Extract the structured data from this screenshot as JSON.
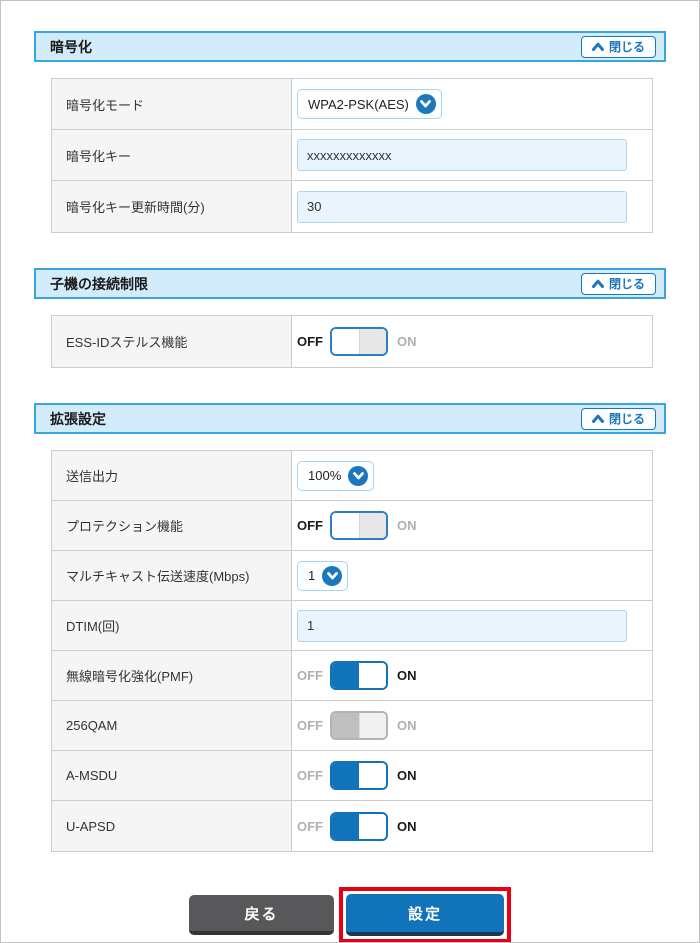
{
  "ui": {
    "close_label": "閉じる",
    "toggle_off": "OFF",
    "toggle_on": "ON"
  },
  "sections": [
    {
      "title": "暗号化",
      "rows": [
        {
          "label": "暗号化モード",
          "type": "select",
          "value": "WPA2-PSK(AES)"
        },
        {
          "label": "暗号化キー",
          "type": "input",
          "value": "xxxxxxxxxxxxx"
        },
        {
          "label": "暗号化キー更新時間(分)",
          "type": "input",
          "value": "30"
        }
      ]
    },
    {
      "title": "子機の接続制限",
      "rows": [
        {
          "label": "ESS-IDステルス機能",
          "type": "toggle",
          "state": "off"
        }
      ]
    },
    {
      "title": "拡張設定",
      "rows": [
        {
          "label": "送信出力",
          "type": "select",
          "value": "100%"
        },
        {
          "label": "プロテクション機能",
          "type": "toggle",
          "state": "off"
        },
        {
          "label": "マルチキャスト伝送速度(Mbps)",
          "type": "select",
          "value": "1"
        },
        {
          "label": "DTIM(回)",
          "type": "input",
          "value": "1"
        },
        {
          "label": "無線暗号化強化(PMF)",
          "type": "toggle",
          "state": "on"
        },
        {
          "label": "256QAM",
          "type": "toggle",
          "state": "disabled_on"
        },
        {
          "label": "A-MSDU",
          "type": "toggle",
          "state": "on"
        },
        {
          "label": "U-APSD",
          "type": "toggle",
          "state": "on"
        }
      ]
    }
  ],
  "footer": {
    "back_label": "戻る",
    "submit_label": "設定"
  },
  "colors": {
    "accent_blue": "#1173b9",
    "section_border_blue": "#3aa5dd",
    "section_bg_blue": "#d3ecfb",
    "input_bg_blue": "#e9f4fd",
    "highlight_red": "#e60012",
    "disabled_gray": "#bfbfbf",
    "back_button_gray": "#58585a"
  }
}
